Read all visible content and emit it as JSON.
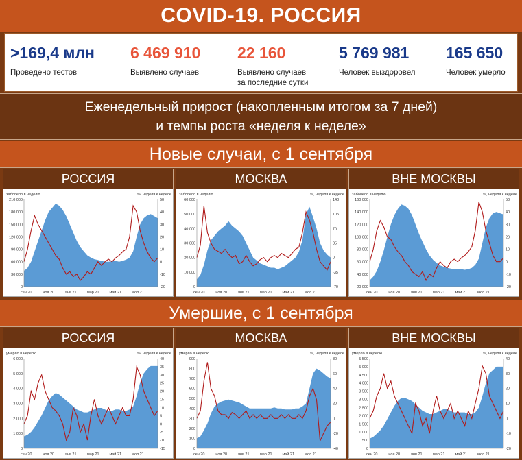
{
  "title": "COVID-19. РОССИЯ",
  "stats": [
    {
      "value": ">169,4 млн",
      "label1": "Проведено тестов",
      "label2": "",
      "color": "#1a3a8a"
    },
    {
      "value": "6 469 910",
      "label1": "Выявлено случаев",
      "label2": "",
      "color": "#e8553a"
    },
    {
      "value": "22 160",
      "label1": "Выявлено случаев",
      "label2": "за последние сутки",
      "color": "#e8553a"
    },
    {
      "value": "5 769 981",
      "label1": "Человек выздоровел",
      "label2": "",
      "color": "#1a3a8a"
    },
    {
      "value": "165 650",
      "label1": "Человек умерло",
      "label2": "",
      "color": "#1a3a8a"
    }
  ],
  "weekly_line1": "Еженедельный прирост (накопленным итогом за 7 дней)",
  "weekly_line2": "и темпы роста «неделя к неделе»",
  "section_cases": "Новые случаи, с 1 сентября",
  "section_deaths": "Умершие, с 1 сентября",
  "colors": {
    "area": "#5b9bd5",
    "line": "#b01a1a"
  },
  "chart_data": [
    {
      "type": "area",
      "panel_title": "РОССИЯ",
      "left_label": "заболело в неделю",
      "right_label": "%, неделя к неделе",
      "x_ticks": [
        "сен 20",
        "ноя 20",
        "янв 21",
        "мар 21",
        "май 21",
        "июл 21"
      ],
      "ylim": [
        0,
        210000
      ],
      "y_ticks": [
        "0",
        "30 000",
        "60 000",
        "90 000",
        "120 000",
        "150 000",
        "180 000",
        "210 000"
      ],
      "y2lim": [
        -20,
        50
      ],
      "y2_ticks": [
        "-20",
        "-10",
        "0",
        "10",
        "20",
        "30",
        "40",
        "50"
      ],
      "series": [
        {
          "kind": "area",
          "values": [
            38000,
            45000,
            60000,
            85000,
            110000,
            135000,
            160000,
            180000,
            190000,
            200000,
            195000,
            185000,
            170000,
            150000,
            130000,
            110000,
            95000,
            85000,
            75000,
            70000,
            66000,
            64000,
            62000,
            60000,
            60000,
            61000,
            62000,
            60000,
            62000,
            65000,
            70000,
            85000,
            120000,
            150000,
            165000,
            172000,
            175000,
            170000,
            165000
          ]
        },
        {
          "kind": "line",
          "values": [
            0,
            10,
            25,
            37,
            30,
            25,
            20,
            15,
            10,
            5,
            2,
            -5,
            -10,
            -8,
            -12,
            -10,
            -15,
            -12,
            -8,
            -10,
            -5,
            0,
            -3,
            0,
            2,
            0,
            3,
            5,
            8,
            10,
            20,
            45,
            40,
            25,
            15,
            8,
            3,
            0,
            3
          ]
        }
      ]
    },
    {
      "type": "area",
      "panel_title": "МОСКВА",
      "left_label": "заболело в неделю",
      "right_label": "%, неделя к неделе",
      "x_ticks": [
        "сен 20",
        "ноя 20",
        "янв 21",
        "мар 21",
        "май 21",
        "июл 21"
      ],
      "ylim": [
        0,
        60000
      ],
      "y_ticks": [
        "0",
        "10 000",
        "20 000",
        "30 000",
        "40 000",
        "50 000",
        "60 000"
      ],
      "y2lim": [
        -70,
        140
      ],
      "y2_ticks": [
        "-70",
        "-35",
        "0",
        "35",
        "70",
        "105",
        "140"
      ],
      "series": [
        {
          "kind": "area",
          "values": [
            5000,
            8000,
            15000,
            25000,
            32000,
            35000,
            38000,
            40000,
            42000,
            45000,
            42000,
            40000,
            38000,
            35000,
            30000,
            25000,
            20000,
            18000,
            16000,
            15000,
            14000,
            13000,
            13000,
            12000,
            13000,
            14000,
            16000,
            18000,
            20000,
            24000,
            32000,
            50000,
            55000,
            48000,
            40000,
            30000,
            25000,
            22000,
            20000
          ]
        },
        {
          "kind": "line",
          "values": [
            0,
            30,
            125,
            60,
            35,
            20,
            15,
            10,
            20,
            8,
            0,
            5,
            -15,
            -10,
            5,
            -10,
            -20,
            -15,
            -5,
            0,
            -10,
            0,
            5,
            0,
            10,
            5,
            0,
            10,
            20,
            25,
            60,
            110,
            90,
            60,
            20,
            -10,
            -20,
            -30,
            -10
          ]
        }
      ]
    },
    {
      "type": "area",
      "panel_title": "ВНЕ МОСКВЫ",
      "left_label": "заболело в неделю",
      "right_label": "%, неделя к неделе",
      "x_ticks": [
        "сен 20",
        "ноя 20",
        "янв 21",
        "мар 21",
        "май 21",
        "июл 21"
      ],
      "ylim": [
        20000,
        160000
      ],
      "y_ticks": [
        "20 000",
        "40 000",
        "60 000",
        "80 000",
        "100 000",
        "120 000",
        "140 000",
        "160 000"
      ],
      "y2lim": [
        -20,
        50
      ],
      "y2_ticks": [
        "-20",
        "-10",
        "0",
        "10",
        "20",
        "30",
        "40",
        "50"
      ],
      "series": [
        {
          "kind": "area",
          "values": [
            30000,
            36000,
            45000,
            60000,
            78000,
            100000,
            120000,
            135000,
            145000,
            152000,
            150000,
            145000,
            135000,
            120000,
            105000,
            92000,
            80000,
            70000,
            63000,
            58000,
            54000,
            52000,
            50000,
            49000,
            48000,
            48000,
            48000,
            47000,
            48000,
            50000,
            55000,
            65000,
            90000,
            115000,
            130000,
            138000,
            140000,
            138000,
            136000
          ]
        },
        {
          "kind": "line",
          "values": [
            0,
            10,
            25,
            33,
            28,
            20,
            18,
            12,
            8,
            5,
            0,
            -3,
            -8,
            -10,
            -12,
            -8,
            -15,
            -10,
            -12,
            -5,
            0,
            -3,
            -5,
            0,
            2,
            0,
            3,
            5,
            8,
            12,
            25,
            48,
            40,
            25,
            15,
            5,
            0,
            0,
            3
          ]
        }
      ]
    },
    {
      "type": "area",
      "panel_title": "РОССИЯ",
      "left_label": "умерло в неделю",
      "right_label": "%, неделя к неделе",
      "x_ticks": [
        "сен 20",
        "ноя 20",
        "янв 21",
        "мар 21",
        "май 21",
        "июл 21"
      ],
      "ylim": [
        0,
        6000
      ],
      "y_ticks": [
        "0",
        "1 000",
        "2 000",
        "3 000",
        "4 000",
        "5 000",
        "6 000"
      ],
      "y2lim": [
        -15,
        40
      ],
      "y2_ticks": [
        "-15",
        "-10",
        "-5",
        "0",
        "5",
        "10",
        "15",
        "20",
        "25",
        "30",
        "35",
        "40"
      ],
      "series": [
        {
          "kind": "area",
          "values": [
            800,
            900,
            1100,
            1400,
            1800,
            2200,
            2700,
            3200,
            3500,
            3700,
            3600,
            3400,
            3200,
            3000,
            2800,
            2600,
            2500,
            2400,
            2400,
            2500,
            2600,
            2700,
            2700,
            2600,
            2500,
            2500,
            2600,
            2600,
            2500,
            2500,
            2600,
            2800,
            3500,
            4400,
            5000,
            5300,
            5500,
            5500,
            5500
          ]
        },
        {
          "kind": "line",
          "values": [
            0,
            5,
            20,
            15,
            25,
            30,
            20,
            15,
            10,
            8,
            5,
            0,
            -10,
            -5,
            10,
            5,
            -5,
            0,
            -10,
            5,
            15,
            5,
            0,
            5,
            10,
            5,
            0,
            5,
            10,
            5,
            5,
            15,
            35,
            30,
            20,
            15,
            10,
            5,
            8
          ]
        }
      ]
    },
    {
      "type": "area",
      "panel_title": "МОСКВА",
      "left_label": "умерло в неделю",
      "right_label": "%, неделя к неделе",
      "x_ticks": [
        "сен 20",
        "ноя 20",
        "янв 21",
        "мар 21",
        "май 21",
        "июл 21"
      ],
      "ylim": [
        0,
        900
      ],
      "y_ticks": [
        "0",
        "100",
        "200",
        "300",
        "400",
        "500",
        "600",
        "700",
        "800",
        "900"
      ],
      "y2lim": [
        -40,
        80
      ],
      "y2_ticks": [
        "-40",
        "-20",
        "0",
        "20",
        "40",
        "60",
        "80"
      ],
      "series": [
        {
          "kind": "area",
          "values": [
            100,
            120,
            180,
            250,
            350,
            420,
            450,
            470,
            480,
            490,
            480,
            470,
            460,
            440,
            420,
            400,
            400,
            400,
            400,
            400,
            400,
            400,
            410,
            400,
            400,
            390,
            390,
            390,
            400,
            400,
            420,
            450,
            600,
            750,
            800,
            780,
            750,
            720,
            700
          ]
        },
        {
          "kind": "line",
          "values": [
            0,
            10,
            50,
            75,
            40,
            30,
            10,
            5,
            5,
            0,
            8,
            5,
            0,
            5,
            10,
            0,
            5,
            0,
            5,
            0,
            0,
            5,
            0,
            0,
            5,
            0,
            5,
            0,
            0,
            5,
            0,
            10,
            30,
            40,
            25,
            -30,
            -20,
            -10,
            -5
          ]
        }
      ]
    },
    {
      "type": "area",
      "panel_title": "ВНЕ МОСКВЫ",
      "left_label": "умерло в неделю",
      "right_label": "%, неделя к неделе",
      "x_ticks": [
        "сен 20",
        "ноя 20",
        "янв 21",
        "мар 21",
        "май 21",
        "июл 21"
      ],
      "ylim": [
        0,
        5500
      ],
      "y_ticks": [
        "0",
        "500",
        "1 000",
        "1 500",
        "2 000",
        "2 500",
        "3 000",
        "3 500",
        "4 000",
        "4 500",
        "5 000",
        "5 500"
      ],
      "y2lim": [
        -20,
        40
      ],
      "y2_ticks": [
        "-20",
        "-10",
        "0",
        "10",
        "20",
        "30",
        "40"
      ],
      "series": [
        {
          "kind": "area",
          "values": [
            600,
            700,
            900,
            1100,
            1400,
            1800,
            2200,
            2600,
            2900,
            3100,
            3100,
            3000,
            2900,
            2700,
            2500,
            2300,
            2200,
            2100,
            2100,
            2200,
            2300,
            2400,
            2400,
            2300,
            2200,
            2200,
            2200,
            2200,
            2100,
            2100,
            2200,
            2500,
            3200,
            4000,
            4600,
            4800,
            5000,
            5000,
            5000
          ]
        },
        {
          "kind": "line",
          "values": [
            0,
            5,
            15,
            20,
            30,
            20,
            25,
            15,
            10,
            5,
            0,
            -5,
            -10,
            10,
            5,
            -5,
            0,
            -10,
            5,
            15,
            5,
            0,
            5,
            10,
            0,
            5,
            0,
            -5,
            5,
            0,
            10,
            20,
            35,
            30,
            15,
            10,
            5,
            0,
            5
          ]
        }
      ]
    }
  ]
}
